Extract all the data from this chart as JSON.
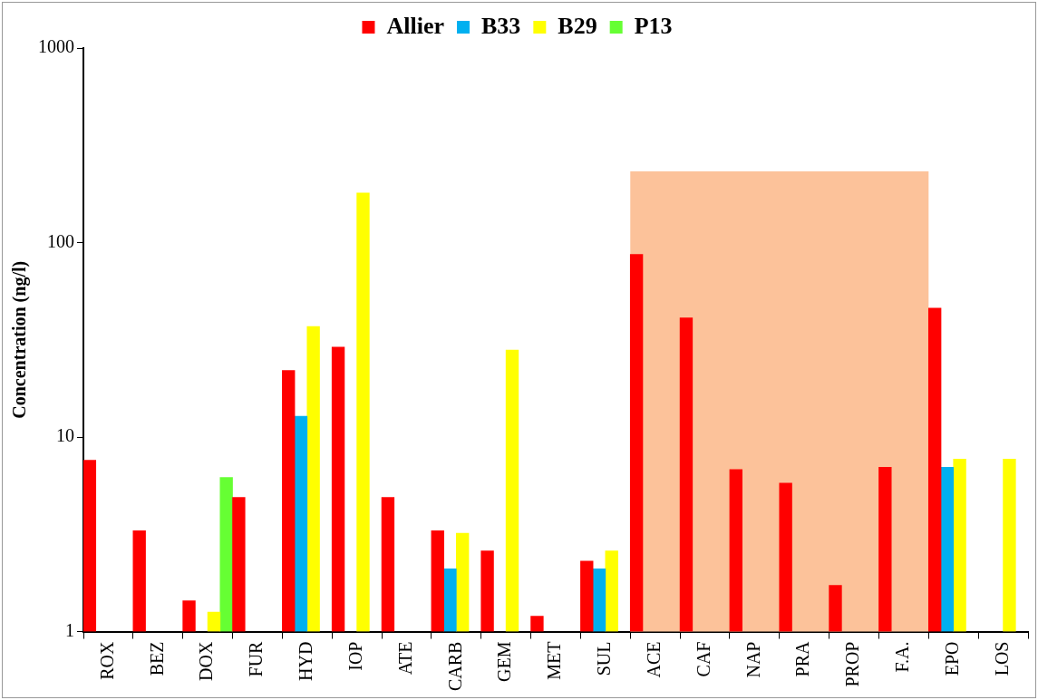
{
  "chart_data": {
    "type": "bar",
    "ylabel": "Concentration (ng/l)",
    "categories": [
      "ROX",
      "BEZ",
      "DOX",
      "FUR",
      "HYD",
      "IOP",
      "ATE",
      "CARB",
      "GEM",
      "MET",
      "SUL",
      "ACE",
      "CAF",
      "NAP",
      "PRA",
      "PROP",
      "F.A.",
      "EPO",
      "LOS"
    ],
    "series": [
      {
        "name": "Allier",
        "color": "#ff0000",
        "values": [
          7.6,
          3.3,
          1.44,
          4.9,
          22,
          29,
          4.9,
          3.3,
          2.6,
          1.2,
          2.3,
          87,
          41,
          6.8,
          5.8,
          1.73,
          7.0,
          46,
          null
        ]
      },
      {
        "name": "B33",
        "color": "#00b0f0",
        "values": [
          null,
          null,
          null,
          null,
          12.8,
          null,
          null,
          2.1,
          null,
          null,
          2.1,
          null,
          null,
          null,
          null,
          null,
          null,
          7.0,
          null
        ]
      },
      {
        "name": "B29",
        "color": "#ffff00",
        "values": [
          null,
          null,
          1.26,
          null,
          37,
          180,
          null,
          3.2,
          28,
          null,
          2.6,
          null,
          null,
          null,
          null,
          null,
          null,
          7.7,
          7.7
        ]
      },
      {
        "name": "P13",
        "color": "#66ff33",
        "values": [
          null,
          null,
          6.2,
          null,
          null,
          null,
          null,
          null,
          null,
          null,
          null,
          null,
          null,
          null,
          null,
          null,
          null,
          null,
          null
        ]
      }
    ],
    "log": true,
    "ylim": [
      1,
      1000
    ],
    "yticks": [
      1,
      10,
      100,
      1000
    ],
    "bands": [
      {
        "axis": "x",
        "from": "ACE",
        "to": "F.A.",
        "label": null,
        "color": "#fcc29a"
      }
    ],
    "grid": false,
    "legend": "top"
  }
}
